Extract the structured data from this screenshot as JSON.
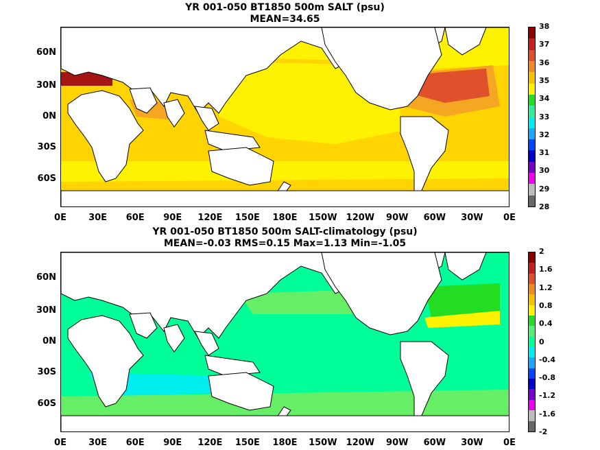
{
  "panel1": {
    "title_line1": "YR 001-050 BT1850 500m SALT (psu)",
    "title_line2": "MEAN=34.65",
    "colorbar": {
      "ticks": [
        "38",
        "37",
        "36",
        "35",
        "34",
        "33",
        "32",
        "31",
        "30",
        "29",
        "28"
      ],
      "colors": [
        "#8b0000",
        "#c41e1e",
        "#e0502a",
        "#f08a22",
        "#f5c200",
        "#fff200",
        "#22dd22",
        "#33ee99",
        "#00eeee",
        "#19a7ff",
        "#0044ff",
        "#0000cc",
        "#7700cc",
        "#ee00ee",
        "#bbbbbb",
        "#666666"
      ]
    }
  },
  "panel2": {
    "title_line1": "YR 001-050 BT1850 500m SALT-climatology (psu)",
    "title_line2": "MEAN=-0.03   RMS=0.15   Max=1.13   Min=-1.05",
    "colorbar": {
      "ticks": [
        "2",
        "1.6",
        "1.2",
        "0.8",
        "0.4",
        "0",
        "-0.4",
        "-0.8",
        "-1.2",
        "-1.6",
        "-2"
      ],
      "colors": [
        "#8b0000",
        "#c41e1e",
        "#e0502a",
        "#f08a22",
        "#f5c200",
        "#fff200",
        "#22dd22",
        "#55ee77",
        "#00ff99",
        "#00eeee",
        "#19a7ff",
        "#0044ff",
        "#0000cc",
        "#7700cc",
        "#ee00ee",
        "#bbbbbb",
        "#666666"
      ]
    }
  },
  "axes": {
    "lat_labels": [
      "60N",
      "30N",
      "0N",
      "30S",
      "60S"
    ],
    "lon_labels": [
      "0E",
      "30E",
      "60E",
      "90E",
      "120E",
      "150E",
      "180E",
      "150W",
      "120W",
      "90W",
      "60W",
      "30W",
      "0E"
    ]
  },
  "colors": {
    "salt_base": "#fff200",
    "salt_mid": "#ffd400",
    "salt_high": "#f5a623",
    "salt_very_high": "#e0502a",
    "salt_extreme": "#a31515",
    "diff_base": "#00ff99",
    "diff_pos": "#66ee66",
    "diff_pos_high": "#22dd22",
    "diff_neg": "#00eeee",
    "land": "#ffffff"
  }
}
